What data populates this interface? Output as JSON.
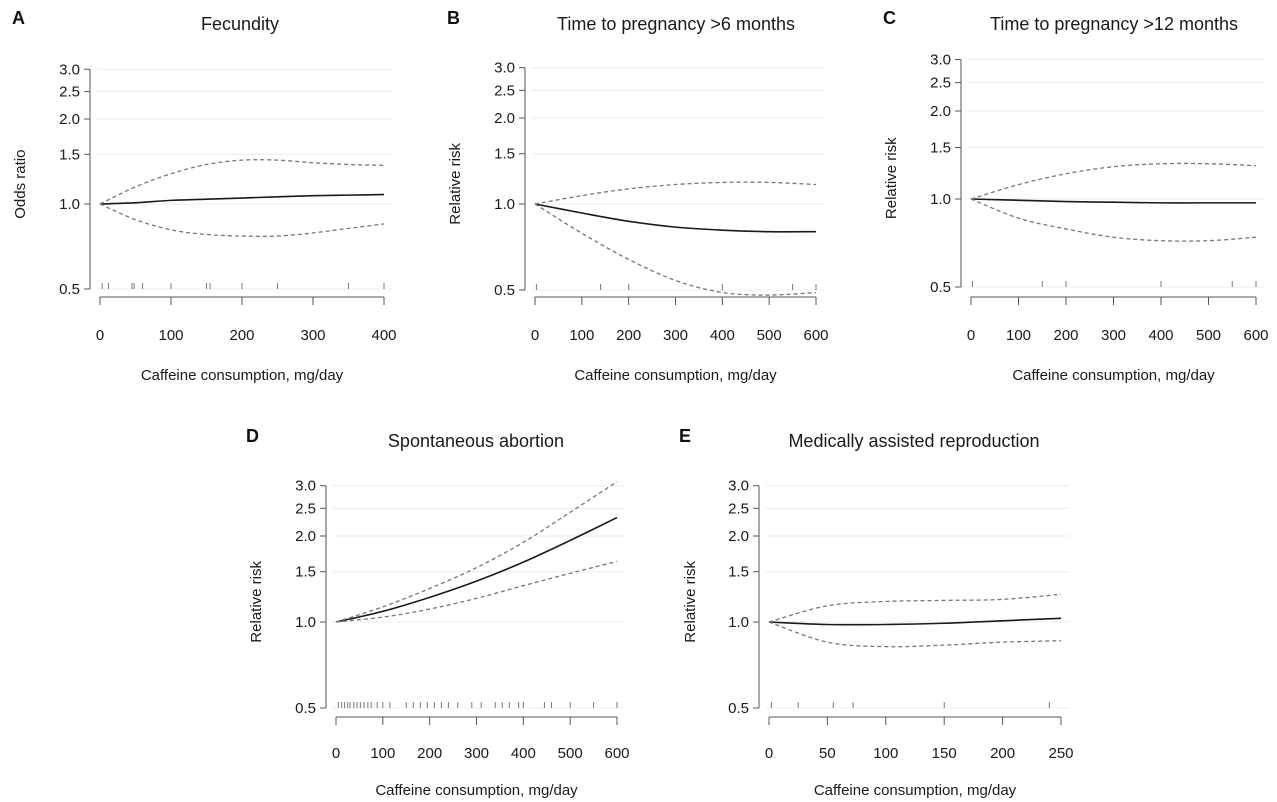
{
  "chart_data": [
    {
      "panel": "A",
      "title": "Fecundity",
      "type": "line",
      "xlabel": "Caffeine consumption, mg/day",
      "ylabel": "Odds ratio",
      "xlim": [
        0,
        400
      ],
      "xticks": [
        0,
        100,
        200,
        300,
        400
      ],
      "ylim": [
        0.5,
        3.0
      ],
      "yscale": "log",
      "yticks": [
        0.5,
        1.0,
        1.5,
        2.0,
        2.5,
        3.0
      ],
      "series": [
        {
          "role": "estimate",
          "x": [
            0,
            50,
            100,
            150,
            200,
            250,
            300,
            350,
            400
          ],
          "values": [
            1.0,
            1.01,
            1.03,
            1.04,
            1.05,
            1.06,
            1.07,
            1.075,
            1.08
          ]
        },
        {
          "role": "upper",
          "x": [
            0,
            50,
            100,
            150,
            200,
            250,
            300,
            350,
            400
          ],
          "values": [
            1.0,
            1.15,
            1.28,
            1.38,
            1.43,
            1.43,
            1.4,
            1.38,
            1.37
          ]
        },
        {
          "role": "lower",
          "x": [
            0,
            50,
            100,
            150,
            200,
            250,
            300,
            350,
            400
          ],
          "values": [
            1.0,
            0.88,
            0.81,
            0.78,
            0.77,
            0.77,
            0.79,
            0.82,
            0.85
          ]
        }
      ],
      "rug": [
        3,
        12,
        45,
        48,
        60,
        100,
        150,
        155,
        200,
        250,
        350,
        400
      ]
    },
    {
      "panel": "B",
      "title": "Time to pregnancy >6 months",
      "type": "line",
      "xlabel": "Caffeine consumption, mg/day",
      "ylabel": "Relative risk",
      "xlim": [
        0,
        600
      ],
      "xticks": [
        0,
        100,
        200,
        300,
        400,
        500,
        600
      ],
      "ylim": [
        0.5,
        3.0
      ],
      "yscale": "log",
      "yticks": [
        0.5,
        1.0,
        1.5,
        2.0,
        2.5,
        3.0
      ],
      "series": [
        {
          "role": "estimate",
          "x": [
            0,
            100,
            200,
            300,
            400,
            500,
            600
          ],
          "values": [
            1.0,
            0.93,
            0.87,
            0.83,
            0.81,
            0.8,
            0.8
          ]
        },
        {
          "role": "upper",
          "x": [
            0,
            100,
            200,
            300,
            400,
            500,
            600
          ],
          "values": [
            1.0,
            1.07,
            1.13,
            1.17,
            1.19,
            1.19,
            1.17
          ]
        },
        {
          "role": "lower",
          "x": [
            0,
            100,
            200,
            300,
            400,
            500,
            600
          ],
          "values": [
            1.0,
            0.79,
            0.64,
            0.54,
            0.49,
            0.48,
            0.49
          ]
        }
      ],
      "rug": [
        3,
        140,
        200,
        400,
        550,
        600
      ]
    },
    {
      "panel": "C",
      "title": "Time to pregnancy >12 months",
      "type": "line",
      "xlabel": "Caffeine consumption, mg/day",
      "ylabel": "Relative risk",
      "xlim": [
        0,
        600
      ],
      "xticks": [
        0,
        100,
        200,
        300,
        400,
        500,
        600
      ],
      "ylim": [
        0.5,
        3.0
      ],
      "yscale": "log",
      "yticks": [
        0.5,
        1.0,
        1.5,
        2.0,
        2.5,
        3.0
      ],
      "series": [
        {
          "role": "estimate",
          "x": [
            0,
            100,
            200,
            300,
            400,
            500,
            600
          ],
          "values": [
            1.0,
            0.99,
            0.98,
            0.975,
            0.97,
            0.97,
            0.97
          ]
        },
        {
          "role": "upper",
          "x": [
            0,
            100,
            200,
            300,
            400,
            500,
            600
          ],
          "values": [
            1.0,
            1.12,
            1.22,
            1.29,
            1.32,
            1.32,
            1.3
          ]
        },
        {
          "role": "lower",
          "x": [
            0,
            100,
            200,
            300,
            400,
            500,
            600
          ],
          "values": [
            1.0,
            0.86,
            0.79,
            0.74,
            0.72,
            0.72,
            0.74
          ]
        }
      ],
      "rug": [
        3,
        150,
        200,
        400,
        550,
        600
      ]
    },
    {
      "panel": "D",
      "title": "Spontaneous abortion",
      "type": "line",
      "xlabel": "Caffeine consumption, mg/day",
      "ylabel": "Relative risk",
      "xlim": [
        0,
        600
      ],
      "xticks": [
        0,
        100,
        200,
        300,
        400,
        500,
        600
      ],
      "ylim": [
        0.5,
        3.0
      ],
      "yscale": "log",
      "yticks": [
        0.5,
        1.0,
        1.5,
        2.0,
        2.5,
        3.0
      ],
      "series": [
        {
          "role": "estimate",
          "x": [
            0,
            100,
            200,
            300,
            400,
            500,
            600
          ],
          "values": [
            1.0,
            1.09,
            1.22,
            1.39,
            1.62,
            1.93,
            2.32
          ]
        },
        {
          "role": "upper",
          "x": [
            0,
            100,
            200,
            300,
            400,
            500,
            600
          ],
          "values": [
            1.0,
            1.13,
            1.31,
            1.55,
            1.9,
            2.42,
            3.1
          ]
        },
        {
          "role": "lower",
          "x": [
            0,
            100,
            200,
            300,
            400,
            500,
            600
          ],
          "values": [
            1.0,
            1.04,
            1.11,
            1.21,
            1.34,
            1.48,
            1.63
          ]
        }
      ],
      "rug": [
        5,
        12,
        18,
        25,
        30,
        38,
        45,
        52,
        60,
        68,
        75,
        88,
        100,
        115,
        150,
        165,
        180,
        195,
        210,
        225,
        240,
        260,
        290,
        310,
        340,
        355,
        370,
        390,
        400,
        445,
        460,
        500,
        550,
        600
      ]
    },
    {
      "panel": "E",
      "title": "Medically assisted reproduction",
      "type": "line",
      "xlabel": "Caffeine consumption, mg/day",
      "ylabel": "Relative risk",
      "xlim": [
        0,
        250
      ],
      "xticks": [
        0,
        50,
        100,
        150,
        200,
        250
      ],
      "ylim": [
        0.5,
        3.0
      ],
      "yscale": "log",
      "yticks": [
        0.5,
        1.0,
        1.5,
        2.0,
        2.5,
        3.0
      ],
      "series": [
        {
          "role": "estimate",
          "x": [
            0,
            50,
            100,
            150,
            200,
            250
          ],
          "values": [
            1.0,
            0.98,
            0.98,
            0.99,
            1.01,
            1.03
          ]
        },
        {
          "role": "upper",
          "x": [
            0,
            50,
            100,
            150,
            200,
            250
          ],
          "values": [
            1.0,
            1.14,
            1.18,
            1.19,
            1.2,
            1.25
          ]
        },
        {
          "role": "lower",
          "x": [
            0,
            50,
            100,
            150,
            200,
            250
          ],
          "values": [
            1.0,
            0.85,
            0.82,
            0.83,
            0.85,
            0.86
          ]
        }
      ],
      "rug": [
        2,
        25,
        55,
        72,
        150,
        240
      ]
    }
  ]
}
